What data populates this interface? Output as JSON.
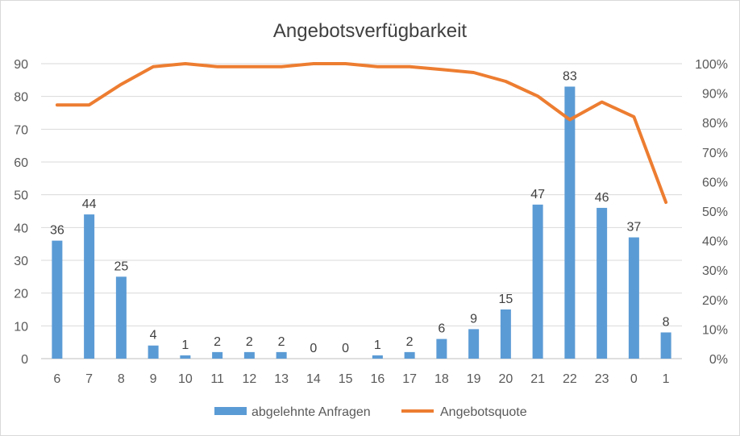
{
  "chart_data": {
    "type": "bar+line",
    "title": "Angebotsverfügbarkeit",
    "categories": [
      "6",
      "7",
      "8",
      "9",
      "10",
      "11",
      "12",
      "13",
      "14",
      "15",
      "16",
      "17",
      "18",
      "19",
      "20",
      "21",
      "22",
      "23",
      "0",
      "1"
    ],
    "series": [
      {
        "name": "abgelehnte Anfragen",
        "type": "bar",
        "axis": "left",
        "color": "#5b9bd5",
        "values": [
          36,
          44,
          25,
          4,
          1,
          2,
          2,
          2,
          0,
          0,
          1,
          2,
          6,
          9,
          15,
          47,
          83,
          46,
          37,
          8
        ]
      },
      {
        "name": "Angebotsquote",
        "type": "line",
        "axis": "right",
        "color": "#ed7d31",
        "values": [
          0.86,
          0.86,
          0.93,
          0.99,
          1.0,
          0.99,
          0.99,
          0.99,
          1.0,
          1.0,
          0.99,
          0.99,
          0.98,
          0.97,
          0.94,
          0.89,
          0.81,
          0.87,
          0.82,
          0.53
        ]
      }
    ],
    "y_left": {
      "min": 0,
      "max": 90,
      "ticks": [
        "0",
        "10",
        "20",
        "30",
        "40",
        "50",
        "60",
        "70",
        "80",
        "90"
      ]
    },
    "y_right": {
      "min": 0,
      "max": 1.0,
      "ticks": [
        "0%",
        "10%",
        "20%",
        "30%",
        "40%",
        "50%",
        "60%",
        "70%",
        "80%",
        "90%",
        "100%"
      ]
    },
    "grid": true,
    "legend": "bottom"
  }
}
